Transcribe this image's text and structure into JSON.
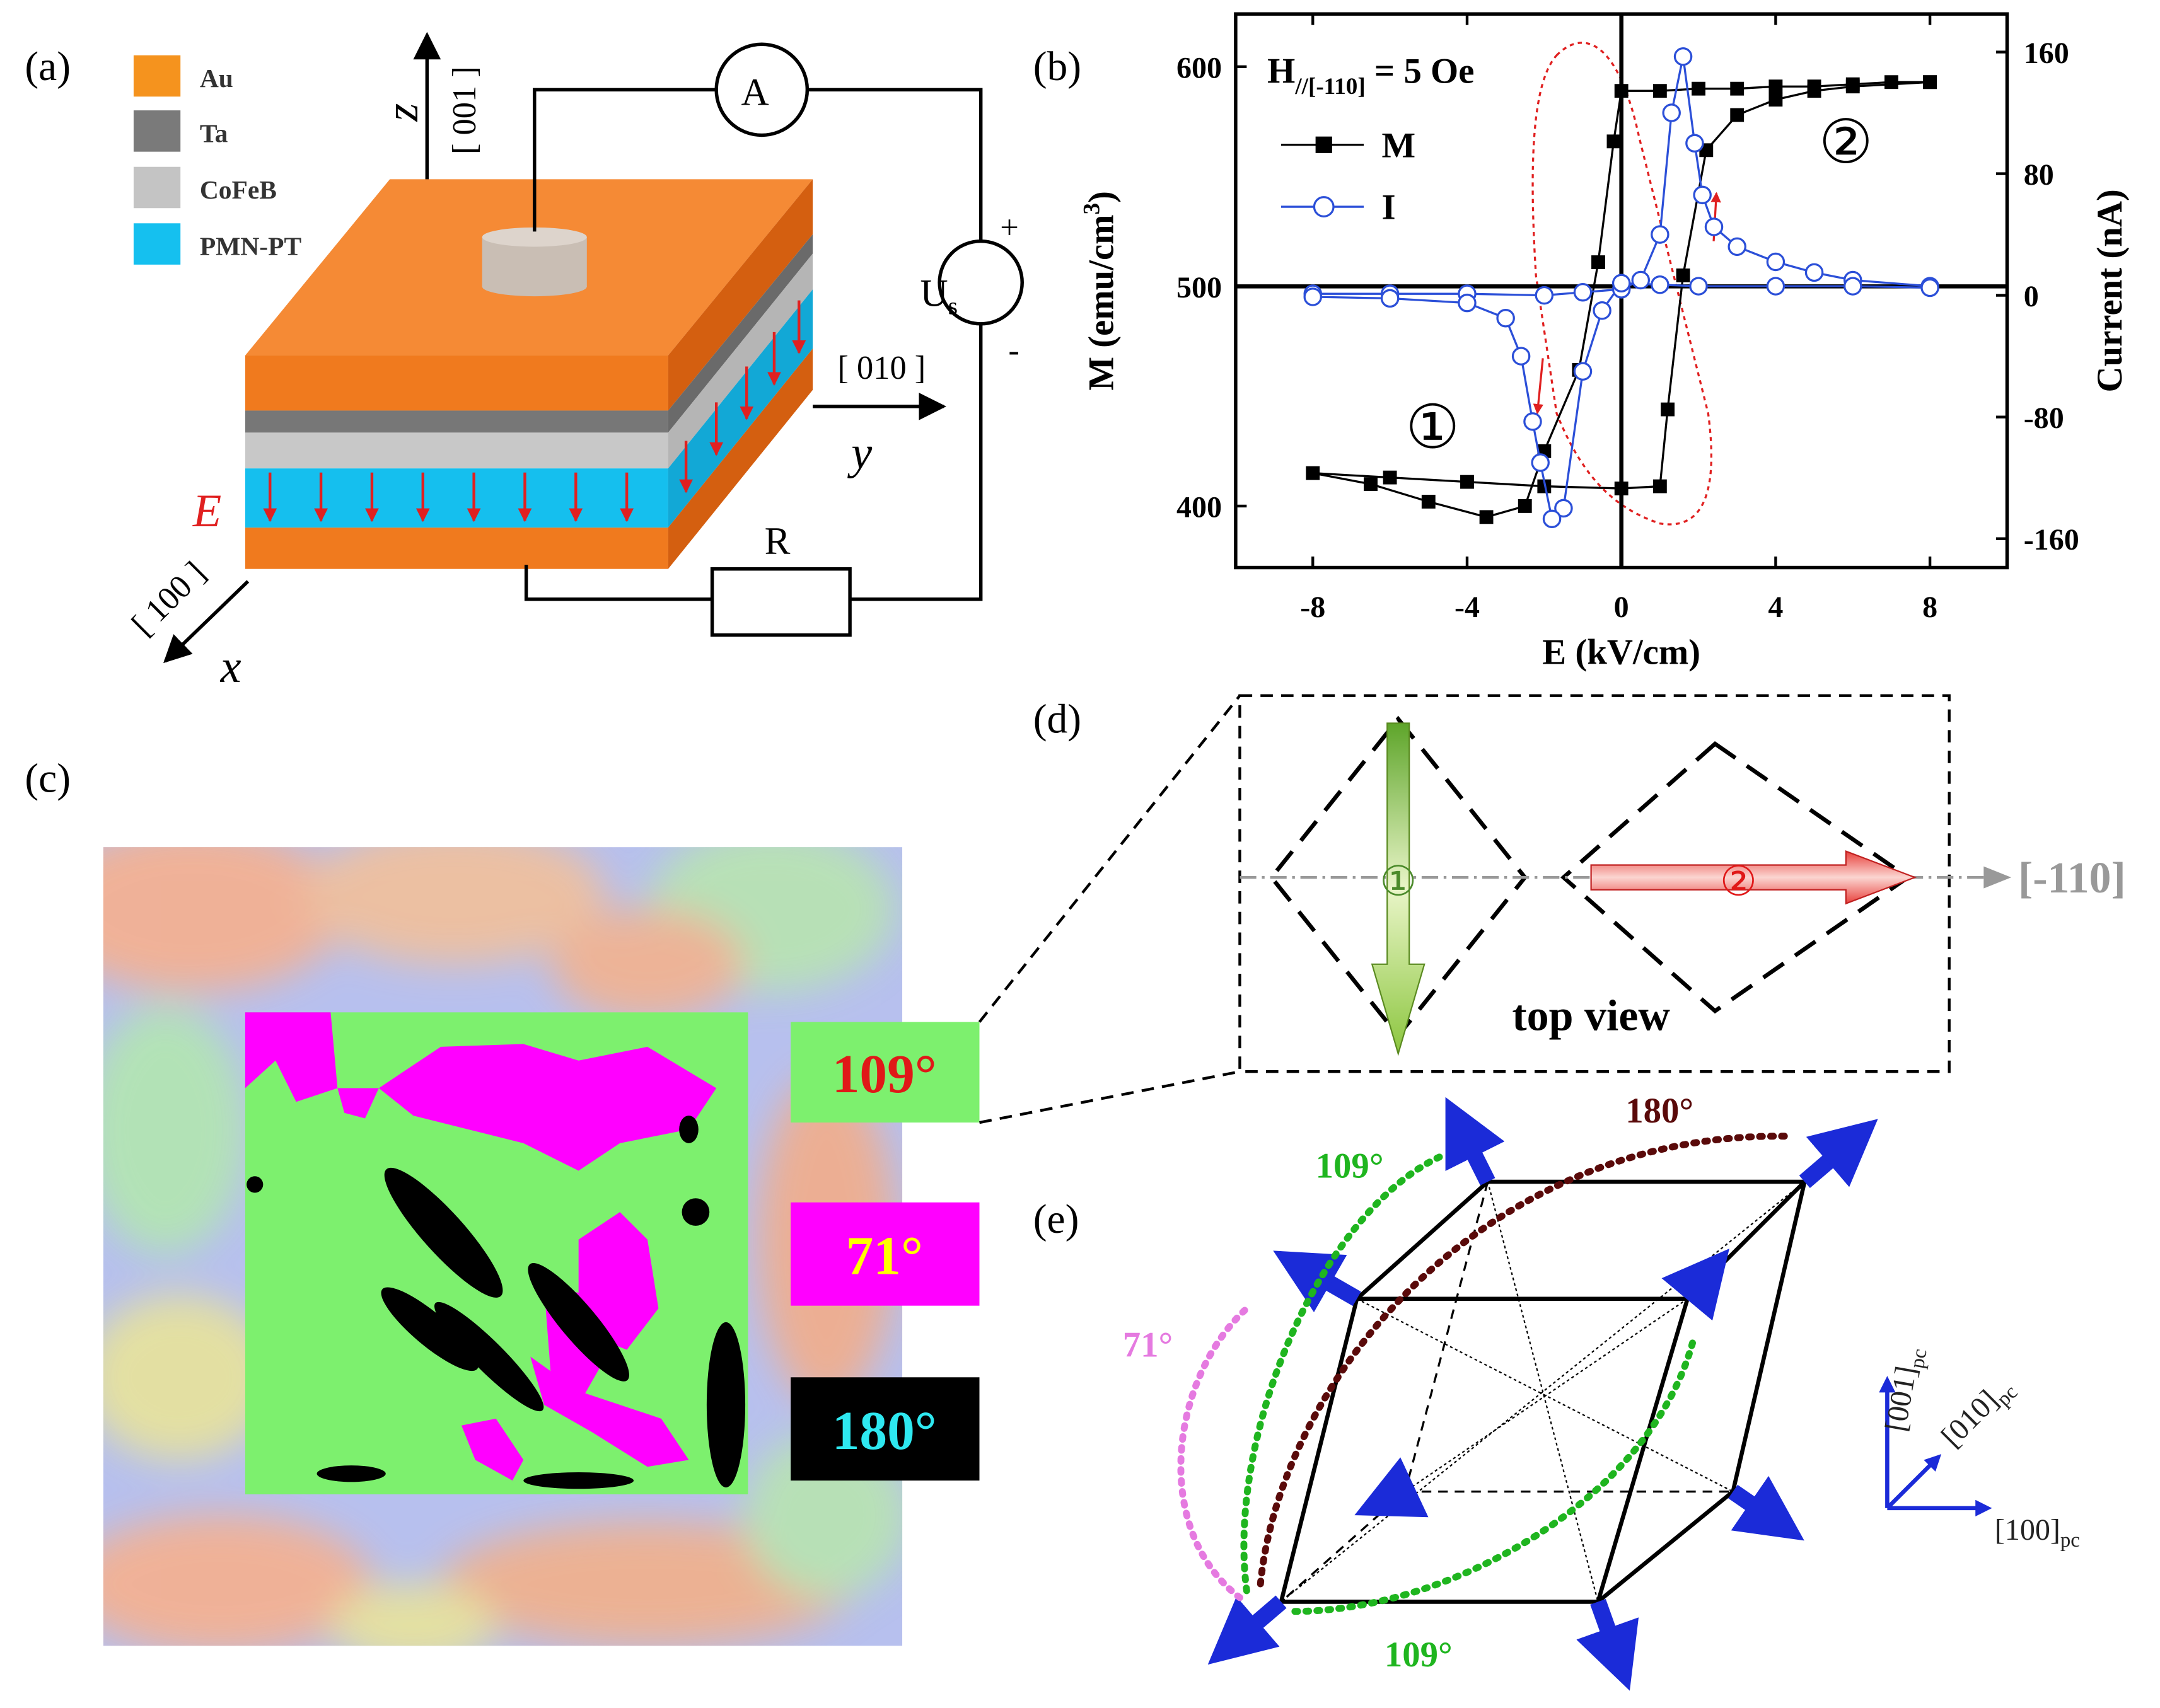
{
  "panel_labels": [
    "(a)",
    "(b)",
    "(c)",
    "(d)",
    "(e)"
  ],
  "panel_a": {
    "legend": [
      "Au",
      "Ta",
      "CoFeB",
      "PMN-PT"
    ],
    "z": "z",
    "z_dir": "[ 001 ]",
    "y": "y",
    "y_dir": "[ 010 ]",
    "x": "x",
    "x_dir": "[ 100 ]",
    "field": "E",
    "ammeter": "A",
    "source": "U",
    "source_sub": "s",
    "plus": "+",
    "minus": "-",
    "resistor": "R"
  },
  "chart_data": {
    "type": "line",
    "xlabel": "E (kV/cm)",
    "ylabel": "M (emu/cm",
    "ylabel_sup": "3",
    "ylabel_end": ")",
    "y2label": "Current (nA)",
    "annotation": {
      "main": "H",
      "sub": "//[-110]",
      "rest": " = 5 Oe"
    },
    "markers": [
      "②",
      "①"
    ],
    "xlim": [
      -10,
      10
    ],
    "xticks": [
      -8,
      -4,
      0,
      4,
      8
    ],
    "ylim": [
      372,
      624
    ],
    "yticks": [
      400,
      500,
      600
    ],
    "y2lim": [
      -179,
      185
    ],
    "y2ticks": [
      -160,
      -80,
      0,
      80,
      160
    ],
    "series": [
      {
        "name": "M",
        "color": "#000000",
        "x": [
          8,
          7,
          6,
          5,
          4,
          3,
          2,
          1,
          0,
          -0.2,
          -0.6,
          -1.1,
          -2.0,
          -2.5,
          -3.5,
          -5,
          -6.5,
          -8,
          -6,
          -4,
          -2,
          0,
          1,
          1.2,
          1.6,
          2.2,
          3,
          4,
          5,
          6,
          8
        ],
        "values": [
          593,
          593,
          592,
          591,
          591,
          590,
          590,
          589,
          589,
          566,
          511,
          462,
          425,
          400,
          395,
          402,
          410,
          415,
          413,
          411,
          409,
          408,
          409,
          444,
          505,
          562,
          578,
          585,
          589,
          591,
          593
        ]
      },
      {
        "name": "I",
        "color": "#2b4fd8",
        "axis": "y2",
        "x": [
          -8,
          -6,
          -4,
          -2,
          -1,
          0,
          0.5,
          1,
          1.3,
          1.6,
          1.9,
          2.1,
          2.4,
          3,
          4,
          5,
          6,
          8,
          null,
          8,
          6,
          4,
          2,
          1,
          0,
          -0.5,
          -1,
          -1.5,
          -1.8,
          -2.1,
          -2.3,
          -2.6,
          -3,
          -4,
          -6,
          -8
        ],
        "values": [
          1,
          1,
          1,
          0,
          2,
          4,
          10,
          40,
          120,
          157,
          100,
          66,
          45,
          32,
          22,
          15,
          10,
          6,
          null,
          5,
          6,
          6,
          6,
          7,
          8,
          -10,
          -50,
          -140,
          -147,
          -110,
          -83,
          -40,
          -15,
          -5,
          -2,
          -1
        ]
      }
    ]
  },
  "panel_c": {
    "labels": [
      "109°",
      "71°",
      "180°"
    ]
  },
  "panel_d": {
    "markers": [
      "①",
      "②"
    ],
    "direction": "[-110]",
    "caption": "top view"
  },
  "panel_e": {
    "angles": [
      "180°",
      "109°",
      "71°",
      "109°"
    ],
    "axes": [
      {
        "label": "[001]",
        "sub": "pc"
      },
      {
        "label": "[010]",
        "sub": "pc"
      },
      {
        "label": "[100]",
        "sub": "pc"
      }
    ]
  }
}
